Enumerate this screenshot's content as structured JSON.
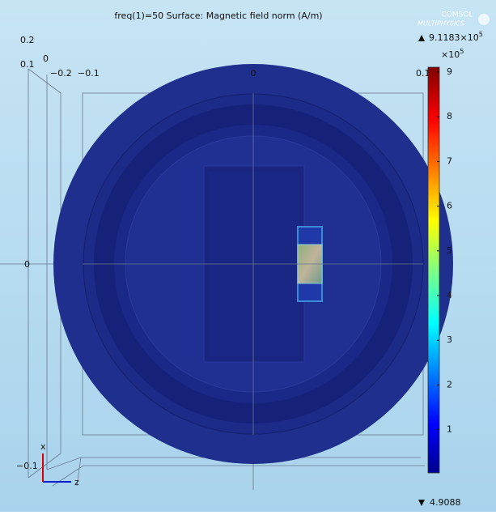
{
  "title": "freq(1)=50  Surface: Magnetic field norm (A/m)",
  "logo": {
    "line1": "COMSOL",
    "line2": "MULTIPHYSICS"
  },
  "colorbar": {
    "max": "9.1183×10",
    "max_exponent": "5",
    "multiplier": "×10",
    "multiplier_exponent": "5",
    "ticks": [
      "9",
      "8",
      "7",
      "6",
      "5",
      "4",
      "3",
      "2",
      "1"
    ],
    "min": "4.9088"
  },
  "axis_labels": {
    "y_top": "0.2",
    "y_mid": "0.1",
    "y_zero": "0",
    "y_left": "−0.2",
    "y_left2": "−0.1",
    "x_center": "0",
    "x_right": "0.1",
    "left_zero": "0",
    "bottom": "−0.1",
    "triad_x": "x",
    "triad_z": "z"
  }
}
